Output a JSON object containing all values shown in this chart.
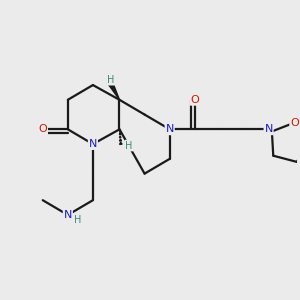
{
  "background_color": "#ebebeb",
  "bond_color": "#1a1a1a",
  "atom_colors": {
    "N": "#1a1acc",
    "O": "#cc1a00",
    "H": "#3a8a7a",
    "C": "#1a1a1a"
  },
  "figsize": [
    3.0,
    3.0
  ],
  "dpi": 100
}
